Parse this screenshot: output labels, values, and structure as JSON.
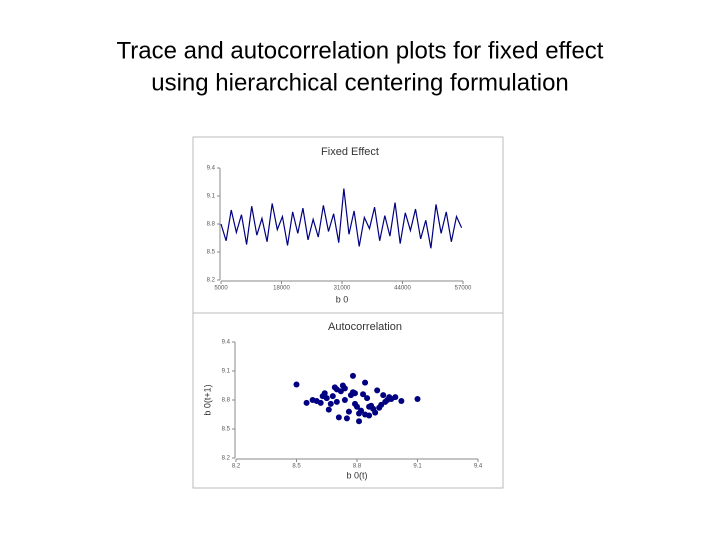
{
  "title": [
    "Trace and autocorrelation plots for fixed effect",
    "using hierarchical centering formulation"
  ],
  "chart_data": [
    {
      "type": "line",
      "title": "Fixed Effect",
      "x_label": "b 0",
      "color": "#000080",
      "x": [
        5000,
        6100,
        7200,
        8300,
        9400,
        10500,
        11600,
        12700,
        13800,
        14900,
        16000,
        17100,
        18200,
        19300,
        20400,
        21500,
        22600,
        23700,
        24800,
        25900,
        27000,
        28100,
        29200,
        30300,
        31400,
        32500,
        33600,
        34700,
        35800,
        36900,
        38000,
        39100,
        40200,
        41300,
        42400,
        43500,
        44600,
        45700,
        46800,
        47900,
        49000,
        50100,
        51200,
        52300,
        53400,
        54500,
        55600,
        56700
      ],
      "values": [
        8.8,
        8.62,
        8.95,
        8.71,
        8.9,
        8.58,
        8.99,
        8.68,
        8.86,
        8.61,
        9.02,
        8.74,
        8.88,
        8.57,
        8.93,
        8.7,
        8.97,
        8.63,
        8.85,
        8.66,
        9.0,
        8.72,
        8.91,
        8.6,
        9.18,
        8.69,
        8.94,
        8.56,
        8.87,
        8.75,
        8.98,
        8.62,
        8.89,
        8.67,
        9.03,
        8.59,
        8.92,
        8.73,
        8.96,
        8.64,
        8.84,
        8.54,
        9.01,
        8.7,
        8.93,
        8.61,
        8.88,
        8.76
      ],
      "xlim": [
        5000,
        57000
      ],
      "xticks": [
        5000,
        18000,
        31000,
        44000,
        57000
      ],
      "ylim": [
        8.2,
        9.4
      ],
      "yticks": [
        8.2,
        8.5,
        8.8,
        9.1,
        9.4
      ]
    },
    {
      "type": "scatter",
      "title": "Autocorrelation",
      "x_label": "b 0(t)",
      "y_label": "b 0(t+1)",
      "color": "#000080",
      "x": [
        8.7,
        8.85,
        8.92,
        8.66,
        8.78,
        8.81,
        8.95,
        8.62,
        8.74,
        8.88,
        8.99,
        8.71,
        8.83,
        8.6,
        8.76,
        8.9,
        8.68,
        8.8,
        8.97,
        8.64,
        8.86,
        8.73,
        8.79,
        8.93,
        8.58,
        8.82,
        8.69,
        8.87,
        9.02,
        8.75,
        8.84,
        8.65,
        8.91,
        8.77,
        8.55,
        8.89,
        8.72,
        8.96,
        8.81,
        8.67,
        8.5,
        9.1,
        8.78,
        8.84,
        8.63,
        8.94,
        8.7,
        8.86,
        8.79,
        8.74
      ],
      "values": [
        8.78,
        8.82,
        8.75,
        8.7,
        8.88,
        8.66,
        8.8,
        8.77,
        8.92,
        8.71,
        8.83,
        8.62,
        8.86,
        8.79,
        8.68,
        8.9,
        8.84,
        8.73,
        8.81,
        8.87,
        8.64,
        8.95,
        8.76,
        8.85,
        8.8,
        8.69,
        8.93,
        8.74,
        8.79,
        8.61,
        8.98,
        8.82,
        8.72,
        8.85,
        8.77,
        8.67,
        8.89,
        8.83,
        8.58,
        8.76,
        8.96,
        8.81,
        9.05,
        8.65,
        8.84,
        8.78,
        8.91,
        8.73,
        8.87,
        8.8
      ],
      "xlim": [
        8.2,
        9.4
      ],
      "xticks": [
        8.2,
        8.5,
        8.8,
        9.1,
        9.4
      ],
      "ylim": [
        8.2,
        9.4
      ],
      "yticks": [
        8.2,
        8.5,
        8.8,
        9.1,
        9.4
      ]
    }
  ]
}
